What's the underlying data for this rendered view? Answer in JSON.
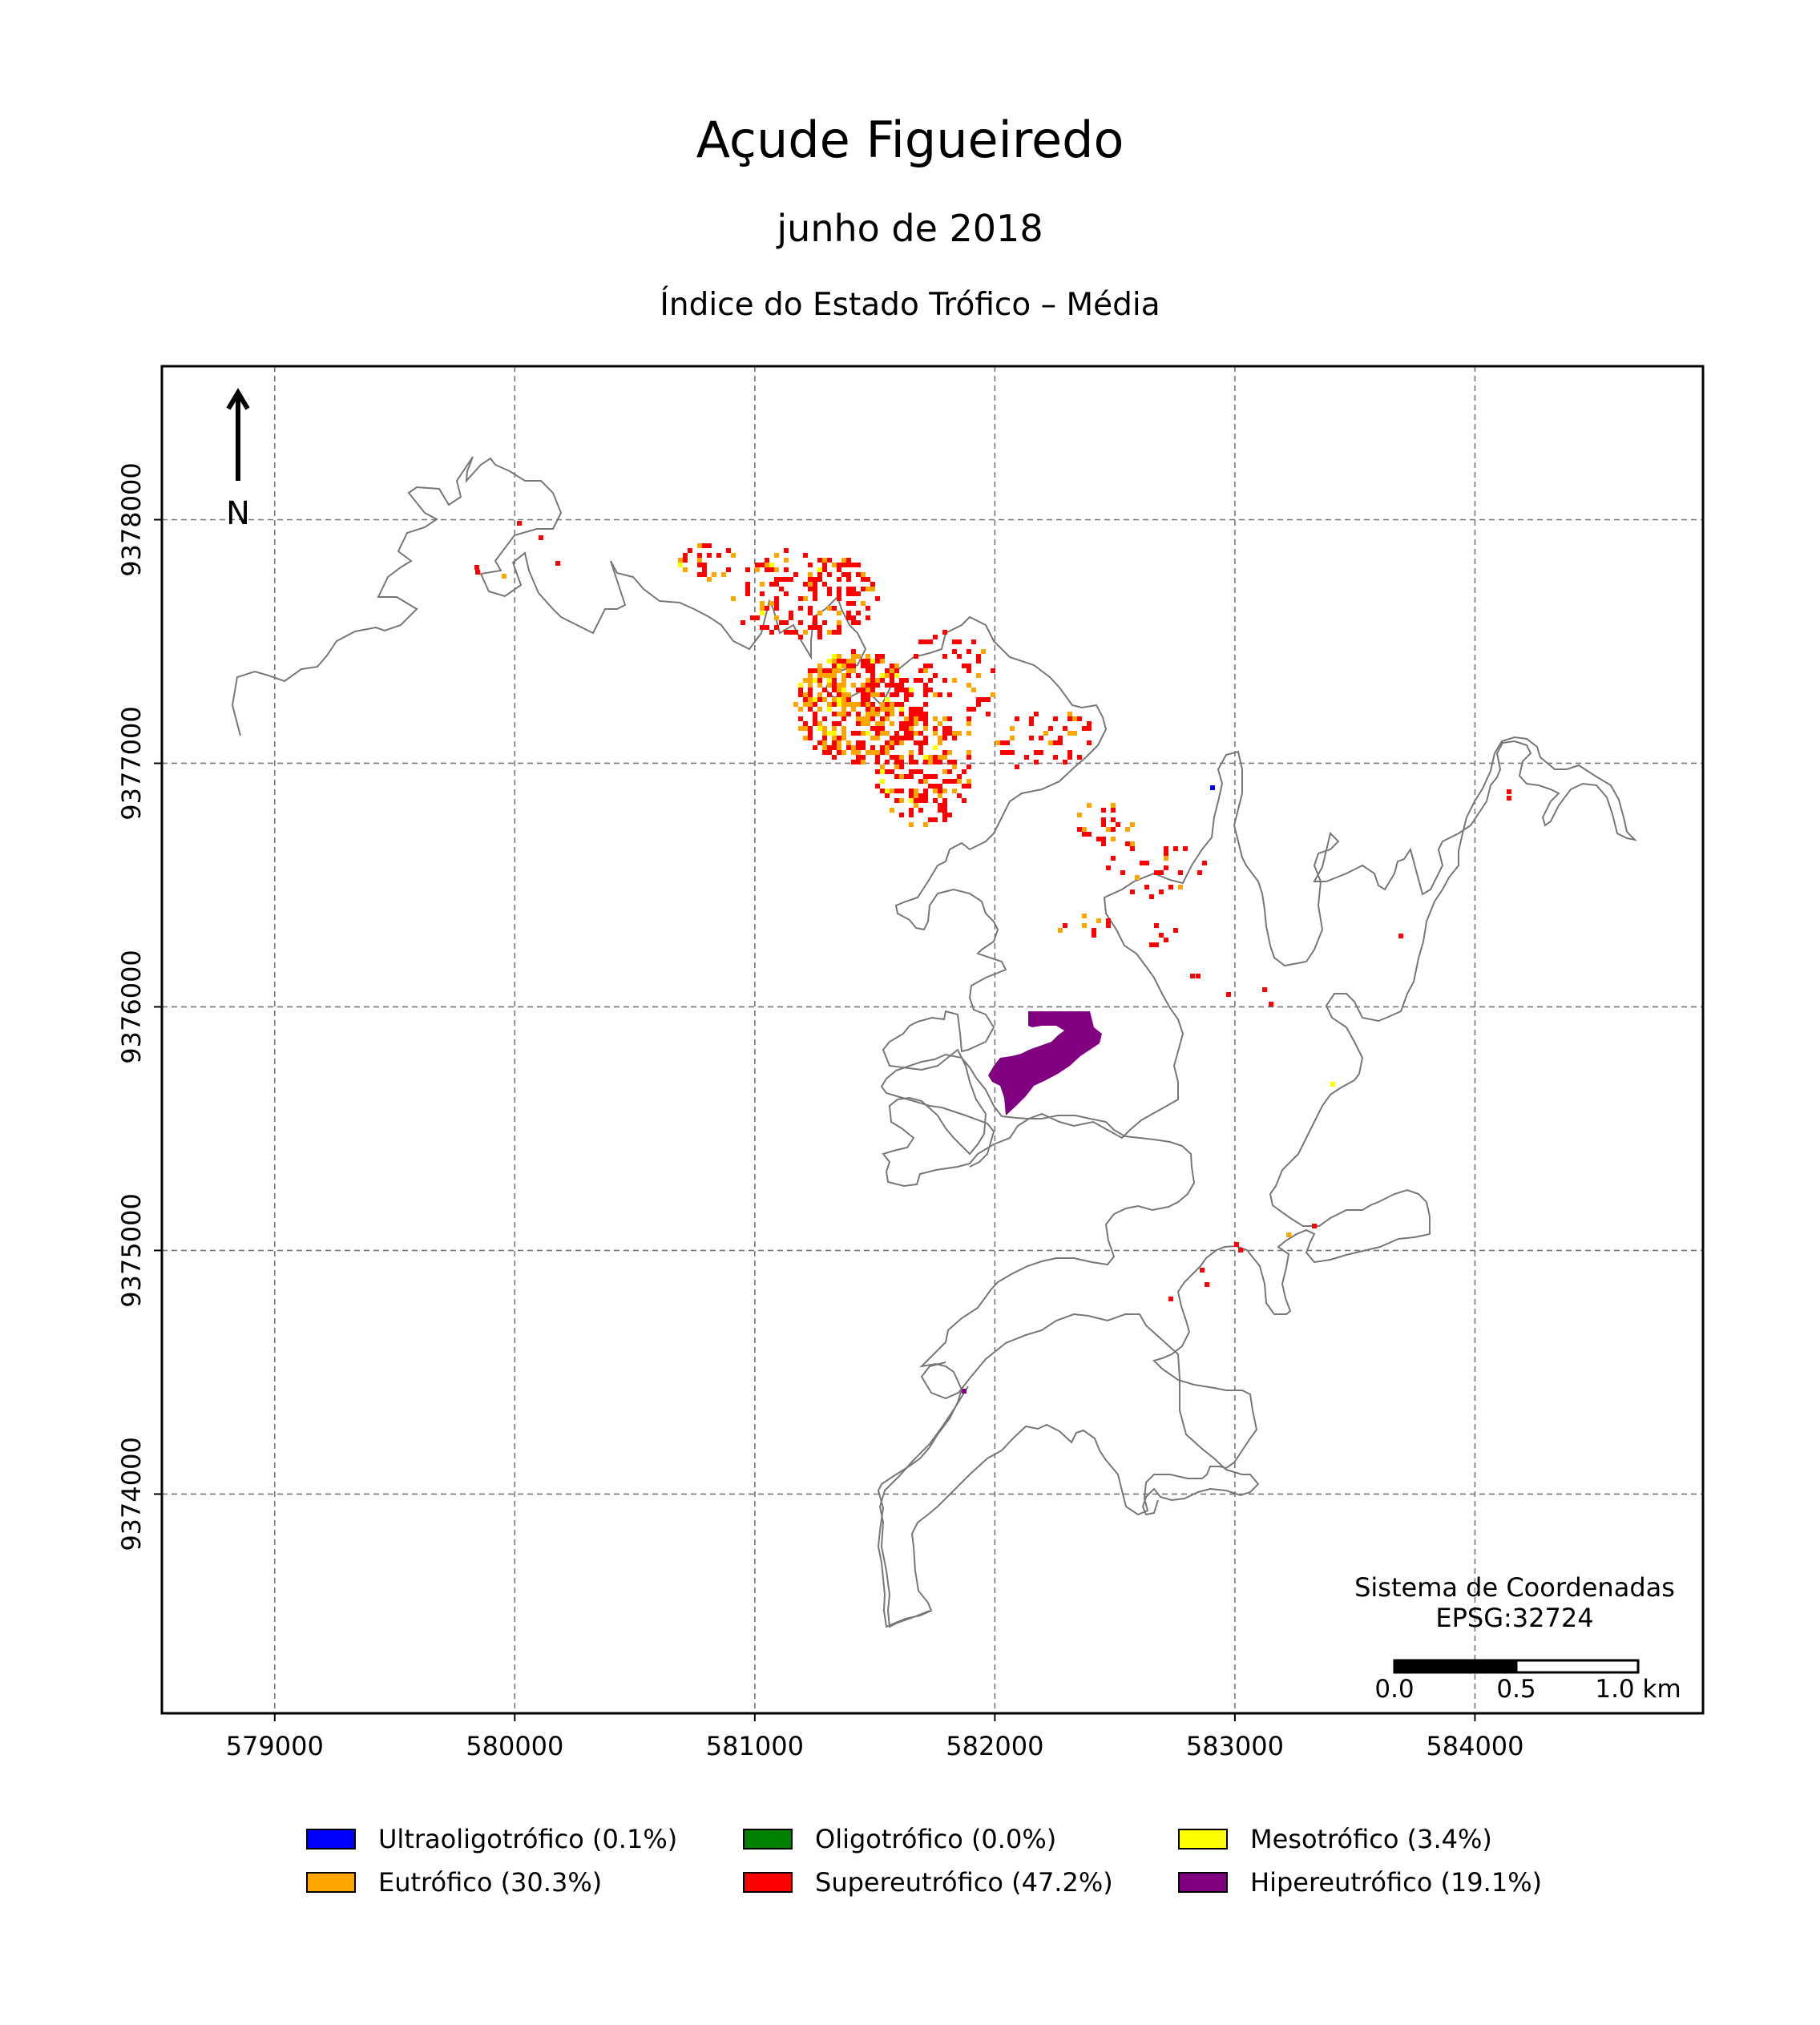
{
  "title": "Açude Figueiredo",
  "subtitle": "junho de 2018",
  "index_title": "Índice do Estado Trófico – Média",
  "north_label": "N",
  "crs_label": {
    "line1": "Sistema de Coordenadas",
    "line2": "EPSG:32724"
  },
  "scale_bar": {
    "labels": [
      "0.0",
      "0.5",
      "1.0 km"
    ],
    "max_km": 1.0
  },
  "axes": {
    "x_ticks": [
      "579000",
      "580000",
      "581000",
      "582000",
      "583000",
      "584000"
    ],
    "y_ticks": [
      "9378000",
      "9377000",
      "9376000",
      "9375000",
      "9374000"
    ],
    "x_range": [
      578530,
      584950
    ],
    "y_range": [
      9373100,
      9378630
    ],
    "grid": true
  },
  "legend": [
    {
      "label": "Ultraoligotrófico (0.1%)",
      "color": "#0000ff",
      "percent": 0.1
    },
    {
      "label": "Oligotrófico (0.0%)",
      "color": "#008000",
      "percent": 0.0
    },
    {
      "label": "Mesotrófico (3.4%)",
      "color": "#ffff00",
      "percent": 3.4
    },
    {
      "label": "Eutrófico (30.3%)",
      "color": "#ffa500",
      "percent": 30.3
    },
    {
      "label": "Supereutrófico (47.2%)",
      "color": "#ff0000",
      "percent": 47.2
    },
    {
      "label": "Hipereutrófico (19.1%)",
      "color": "#800080",
      "percent": 19.1
    }
  ]
}
